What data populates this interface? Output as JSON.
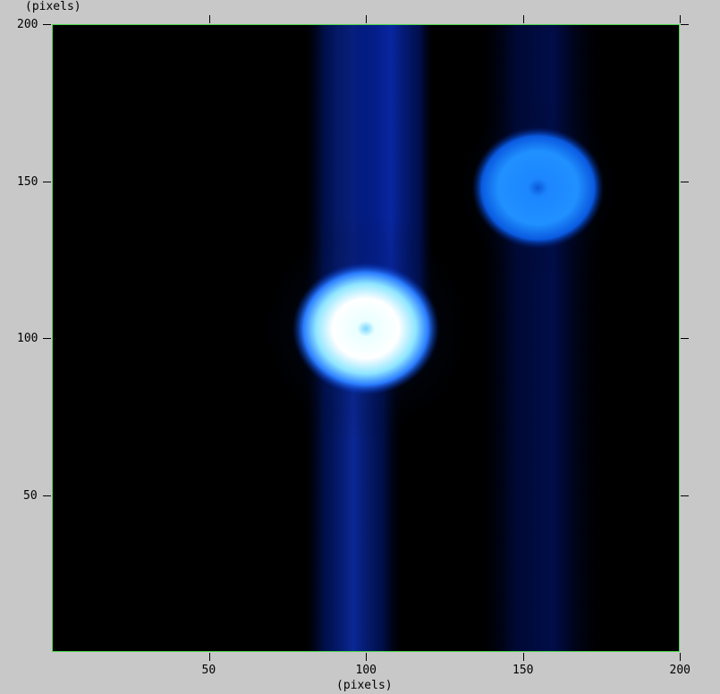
{
  "plot": {
    "x_axis_title": "(pixels)",
    "y_axis_title": "(pixels)",
    "x_ticks": [
      "50",
      "100",
      "150",
      "200"
    ],
    "y_ticks": [
      "50",
      "100",
      "150",
      "200"
    ],
    "x_range": [
      0,
      200
    ],
    "y_range": [
      0,
      200
    ],
    "colormap": "black-blue-white",
    "frame_color": "#4fd84f",
    "background_color": "#c8c8c8"
  },
  "sources": [
    {
      "x": 100,
      "y": 103,
      "peak": "white",
      "halo_color": "#2d8cff"
    },
    {
      "x": 155,
      "y": 148,
      "peak": "light-blue",
      "halo_color": "#1a78ff"
    }
  ],
  "streaks": [
    {
      "x_start": 80,
      "x_end": 112,
      "y_from": 0,
      "y_to": 200
    },
    {
      "x_start": 136,
      "x_end": 176,
      "y_from": 0,
      "y_to": 200
    }
  ]
}
